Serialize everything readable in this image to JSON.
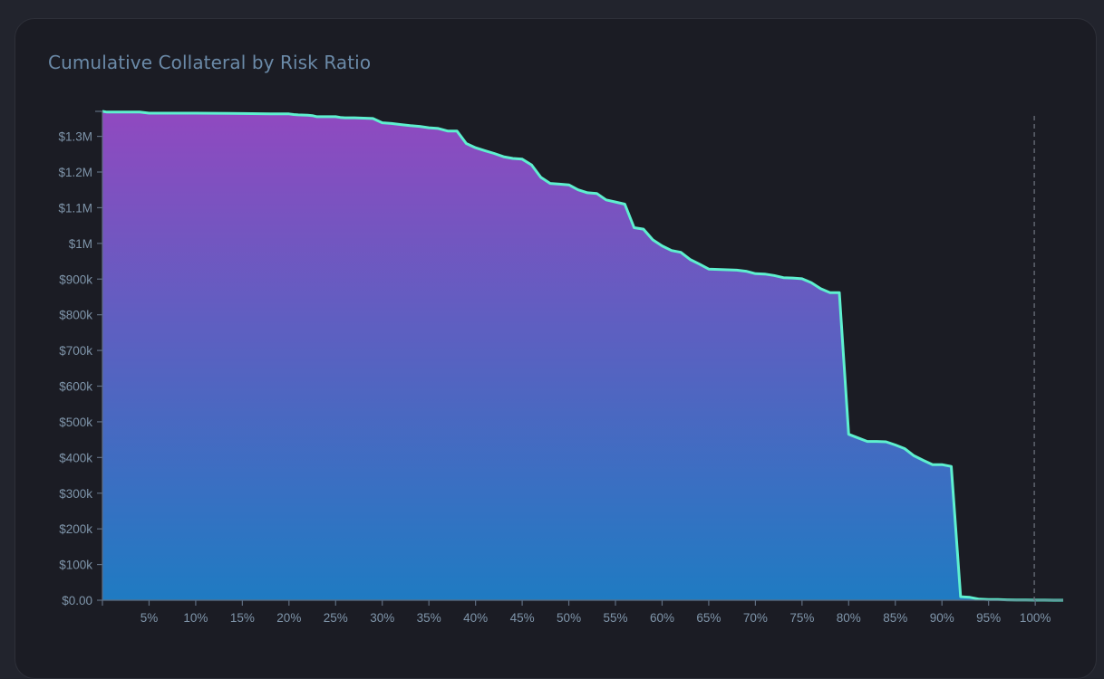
{
  "chart_data": {
    "type": "area",
    "title": "Cumulative Collateral by Risk Ratio",
    "xlabel": "",
    "ylabel": "",
    "xlim": [
      0,
      103
    ],
    "ylim": [
      0,
      1370000
    ],
    "x_ticks": [
      5,
      10,
      15,
      20,
      25,
      30,
      35,
      40,
      45,
      50,
      55,
      60,
      65,
      70,
      75,
      80,
      85,
      90,
      95,
      100
    ],
    "x_tick_labels": [
      "5%",
      "10%",
      "15%",
      "20%",
      "25%",
      "30%",
      "35%",
      "40%",
      "45%",
      "50%",
      "55%",
      "60%",
      "65%",
      "70%",
      "75%",
      "80%",
      "85%",
      "90%",
      "95%",
      "100%"
    ],
    "y_ticks": [
      0,
      100000,
      200000,
      300000,
      400000,
      500000,
      600000,
      700000,
      800000,
      900000,
      1000000,
      1100000,
      1200000,
      1300000
    ],
    "y_tick_labels": [
      "$0.00",
      "$100k",
      "$200k",
      "$300k",
      "$400k",
      "$500k",
      "$600k",
      "$700k",
      "$800k",
      "$900k",
      "$1M",
      "$1.1M",
      "$1.2M",
      "$1.3M"
    ],
    "reference_line_x": 99.9,
    "colors": {
      "line": "#5ef0cf",
      "fill_top": "#9049c0",
      "fill_bottom": "#1f7bc2",
      "axis": "#5f6d80",
      "ref_line": "#6a6f7a"
    },
    "series": [
      {
        "x": [
          0,
          0.5,
          4,
          5,
          10,
          15,
          18,
          19.5,
          20,
          20.5,
          21,
          22,
          22.5,
          23,
          24,
          25,
          25.5,
          26,
          27,
          29,
          30,
          31,
          32,
          33,
          34,
          35,
          36,
          37,
          38,
          39,
          40,
          41,
          42,
          43,
          44,
          45,
          46,
          47,
          48,
          49,
          50,
          51,
          52,
          53,
          54,
          55,
          56,
          57,
          58,
          59,
          60,
          61,
          62,
          63,
          64,
          65,
          66,
          67,
          68,
          69,
          70,
          71,
          72,
          73,
          74,
          75,
          76,
          77,
          78,
          79,
          80,
          81,
          82,
          83,
          84,
          85,
          86,
          87,
          88,
          89,
          90,
          91,
          92,
          93,
          94,
          95,
          96,
          97,
          98,
          99,
          100,
          101,
          102,
          103
        ],
        "y": [
          1370000,
          1368000,
          1368000,
          1365000,
          1365000,
          1364000,
          1363000,
          1363000,
          1363000,
          1361000,
          1360000,
          1359000,
          1358000,
          1355000,
          1355000,
          1355000,
          1353000,
          1352000,
          1352000,
          1350000,
          1338000,
          1336000,
          1333000,
          1330000,
          1328000,
          1324000,
          1322000,
          1315000,
          1315000,
          1280000,
          1268000,
          1260000,
          1252000,
          1243000,
          1238000,
          1236000,
          1220000,
          1185000,
          1168000,
          1166000,
          1164000,
          1150000,
          1142000,
          1140000,
          1122000,
          1116000,
          1110000,
          1044000,
          1040000,
          1010000,
          993000,
          980000,
          975000,
          955000,
          942000,
          928000,
          927000,
          926000,
          925000,
          922000,
          915000,
          914000,
          910000,
          904000,
          903000,
          901000,
          890000,
          873000,
          862000,
          862000,
          465000,
          455000,
          445000,
          445000,
          444000,
          435000,
          425000,
          405000,
          392000,
          380000,
          380000,
          375000,
          10000,
          8000,
          3000,
          2000,
          2000,
          1000,
          500,
          500,
          300,
          200,
          100,
          0
        ]
      }
    ]
  }
}
